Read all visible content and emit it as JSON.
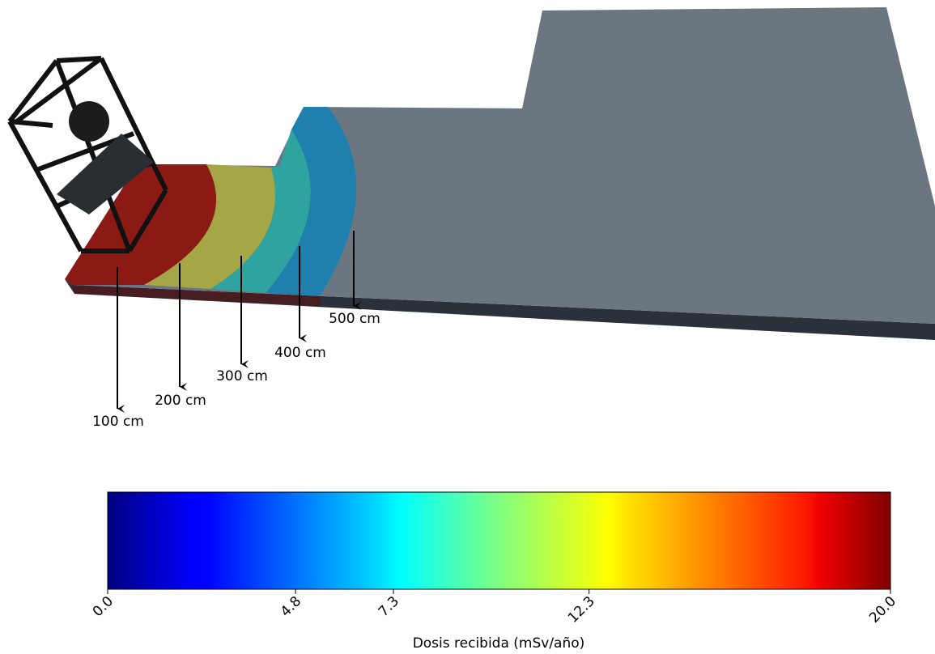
{
  "chart_data": {
    "type": "colorbar",
    "xlabel": "Dosis recibida (mSv/año)",
    "colormap": "jet",
    "xlim": [
      0,
      20
    ],
    "xticks": [
      {
        "value": 0,
        "label": "0.0"
      },
      {
        "value": 4.8,
        "label": "4.8"
      },
      {
        "value": 7.3,
        "label": "7.3"
      },
      {
        "value": 12.3,
        "label": "12.3"
      },
      {
        "value": 20,
        "label": "20.0"
      }
    ],
    "annotations": [
      "100 cm",
      "200 cm",
      "300 cm",
      "400 cm",
      "500 cm"
    ]
  }
}
